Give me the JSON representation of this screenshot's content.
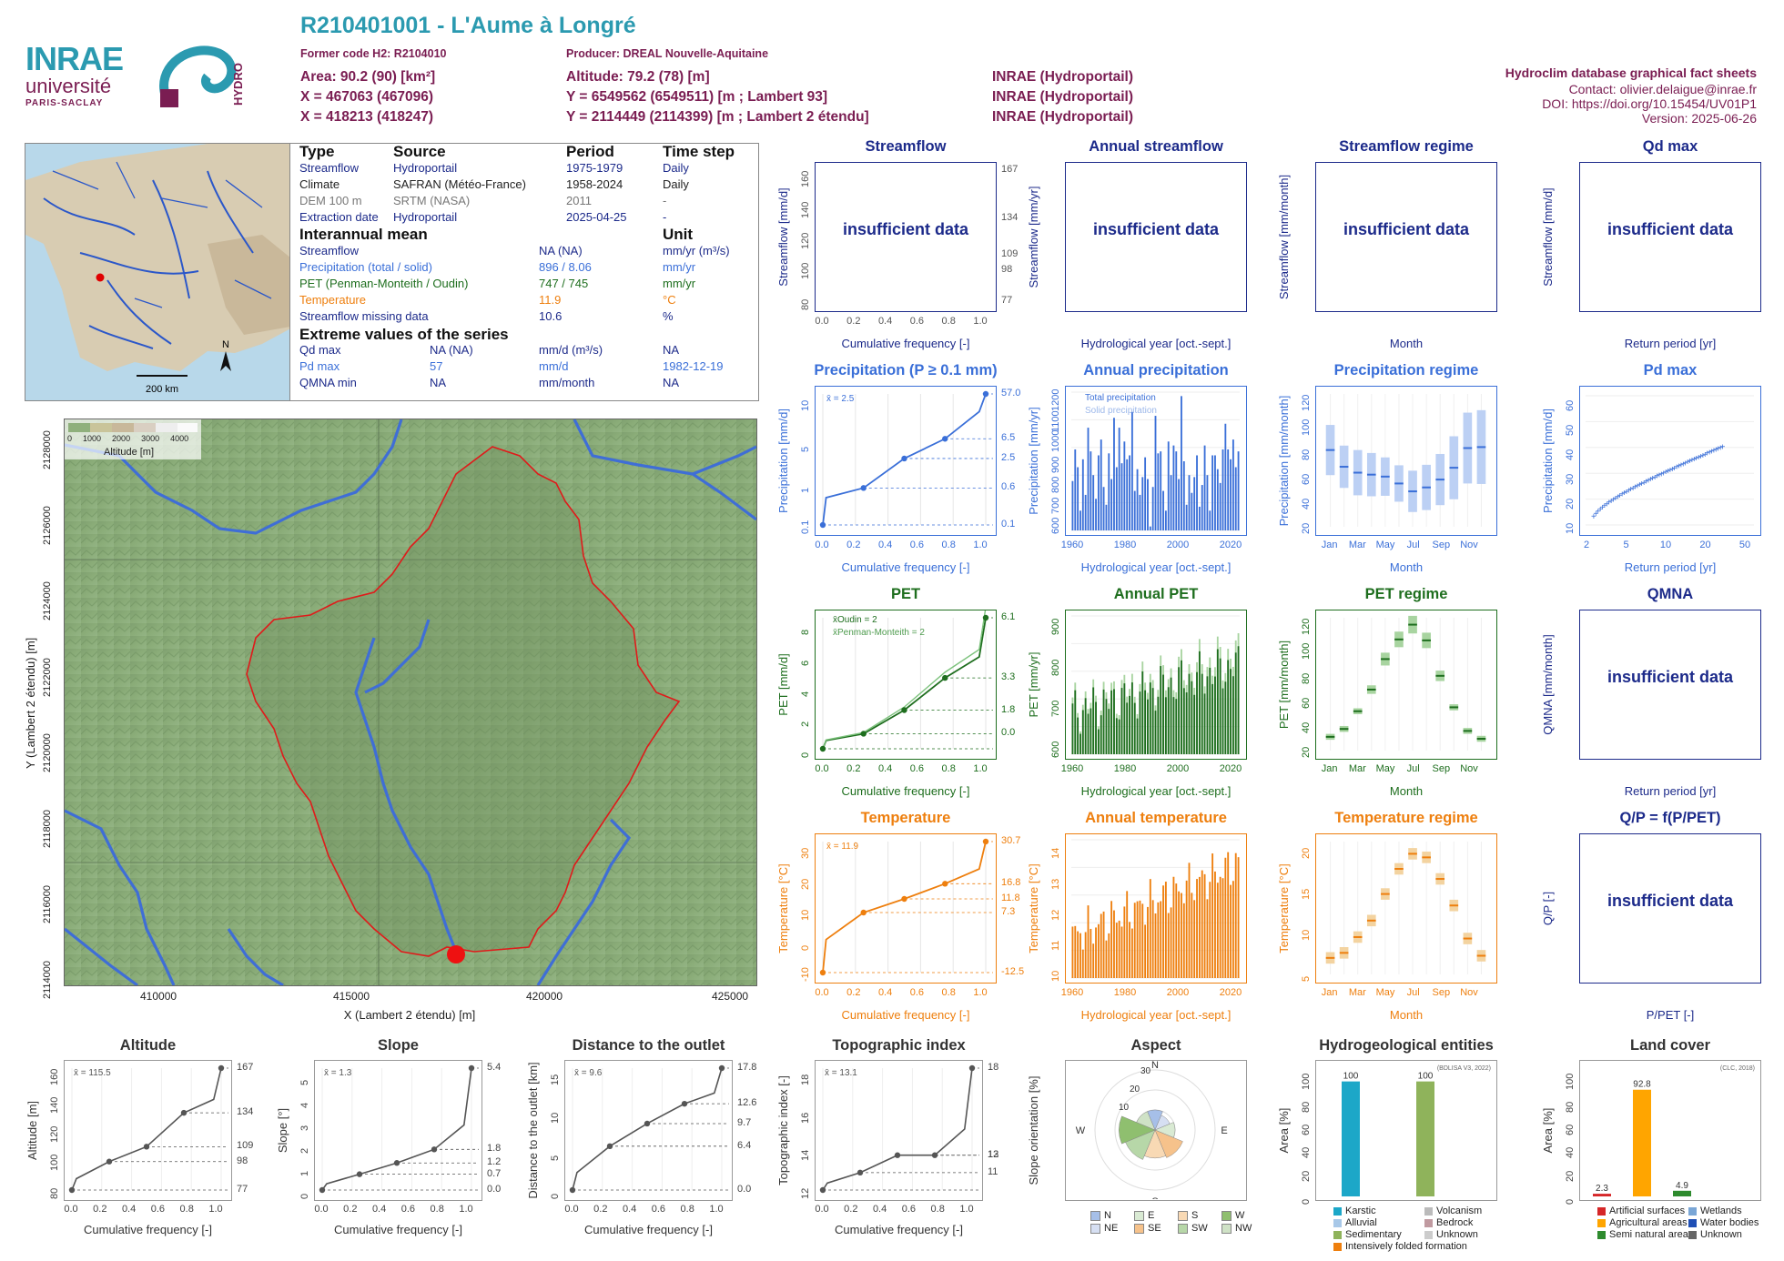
{
  "header": {
    "title": "R210401001 - L'Aume à Longré",
    "former_code": "Former code H2: R2104010",
    "producer": "Producer: DREAL Nouvelle-Aquitaine",
    "area": "Area: 90.2 (90) [km²]",
    "altitude": "Altitude: 79.2 (78) [m]",
    "x_coord": "X = 467063 (467096)",
    "y_coord_l93": "Y = 6549562 (6549511) [m ; Lambert 93]",
    "x_coord2": "X = 418213 (418247)",
    "y_coord_l2": "Y = 2114449 (2114399) [m ; Lambert 2 étendu]",
    "src1": "INRAE (Hydroportail)",
    "src2": "INRAE (Hydroportail)",
    "src3": "INRAE (Hydroportail)",
    "right_title": "Hydroclim database graphical fact sheets",
    "contact": "Contact: olivier.delaigue@inrae.fr",
    "doi": "DOI: https://doi.org/10.15454/UV01P1",
    "version": "Version: 2025-06-26",
    "logo_inrae": "INRAE",
    "logo_univ": "université",
    "logo_ps": "PARIS-SACLAY",
    "logo_hydro": "HYDRO"
  },
  "minimap": {
    "scale": "200 km",
    "north": "N"
  },
  "info": {
    "h_type": "Type",
    "h_source": "Source",
    "h_period": "Period",
    "h_timestep": "Time step",
    "rows": [
      {
        "type": "Streamflow",
        "source": "Hydroportail",
        "period": "1975-1979",
        "step": "Daily",
        "color": "#1c2a8a"
      },
      {
        "type": "Climate",
        "source": "SAFRAN (Météo-France)",
        "period": "1958-2024",
        "step": "Daily",
        "color": "#222222"
      },
      {
        "type": "DEM 100 m",
        "source": "SRTM (NASA)",
        "period": "2011",
        "step": "-",
        "color": "#777777"
      },
      {
        "type": "Extraction date",
        "source": "Hydroportail",
        "period": "2025-04-25",
        "step": "-",
        "color": "#1c2a8a"
      }
    ],
    "h_interannual": "Interannual mean",
    "h_unit": "Unit",
    "means": [
      {
        "label": "Streamflow",
        "value": "NA (NA)",
        "unit": "mm/yr (m³/s)",
        "color": "#1c2a8a"
      },
      {
        "label": "Precipitation (total / solid)",
        "value": "896 / 8.06",
        "unit": "mm/yr",
        "color": "#3a6fd8"
      },
      {
        "label": "PET (Penman-Monteith / Oudin)",
        "value": "747 / 745",
        "unit": "mm/yr",
        "color": "#1e6e1e"
      },
      {
        "label": "Temperature",
        "value": "11.9",
        "unit": "°C",
        "color": "#ee7f0e"
      },
      {
        "label": "Streamflow missing data",
        "value": "10.6",
        "unit": "%",
        "color": "#1c2a8a"
      }
    ],
    "h_extreme": "Extreme values of the series",
    "extremes": [
      {
        "label": "Qd max",
        "value": "NA (NA)",
        "unit": "mm/d (m³/s)",
        "date": "NA",
        "color": "#1c2a8a"
      },
      {
        "label": "Pd max",
        "value": "57",
        "unit": "mm/d",
        "date": "1982-12-19",
        "color": "#3a6fd8"
      },
      {
        "label": "QMNA min",
        "value": "NA",
        "unit": "mm/month",
        "date": "NA",
        "color": "#1c2a8a"
      }
    ]
  },
  "map": {
    "ylabel": "Y (Lambert 2 étendu) [m]",
    "xlabel": "X (Lambert 2 étendu) [m]",
    "xticks": [
      "410000",
      "415000",
      "420000",
      "425000"
    ],
    "yticks": [
      "2128000",
      "2126000",
      "2124000",
      "2122000",
      "2120000",
      "2118000",
      "2116000",
      "2114000"
    ],
    "legend_title": "Altitude [m]",
    "legend_ticks": [
      "0",
      "1000",
      "2000",
      "3000",
      "4000"
    ]
  },
  "panels": {
    "streamflow": {
      "title": "Streamflow",
      "ylabel": "Streamflow [mm/d]",
      "xlabel": "Cumulative frequency [-]",
      "msg": "insufficient data"
    },
    "annual_streamflow": {
      "title": "Annual streamflow",
      "ylabel": "Streamflow [mm/yr]",
      "xlabel": "Hydrological year [oct.-sept.]",
      "msg": "insufficient data"
    },
    "streamflow_regime": {
      "title": "Streamflow regime",
      "ylabel": "Streamflow [mm/month]",
      "xlabel": "Month",
      "msg": "insufficient data"
    },
    "qd_max": {
      "title": "Qd  max",
      "ylabel": "Streamflow [mm/d]",
      "xlabel": "Return period [yr]",
      "msg": "insufficient data"
    },
    "precip": {
      "title": "Precipitation (P ≥ 0.1 mm)",
      "ylabel": "Precipitation [mm/d]",
      "xlabel": "Cumulative frequency [-]",
      "mean": "x̄ = 2.5"
    },
    "annual_precip": {
      "title": "Annual precipitation",
      "ylabel": "Precipitation [mm/yr]",
      "xlabel": "Hydrological year [oct.-sept.]",
      "leg1": "Total precipitation",
      "leg2": "Solid precipitation"
    },
    "precip_regime": {
      "title": "Precipitation regime",
      "ylabel": "Precipitation [mm/month]",
      "xlabel": "Month"
    },
    "pd_max": {
      "title": "Pd  max",
      "ylabel": "Precipitation [mm/d]",
      "xlabel": "Return period [yr]"
    },
    "pet": {
      "title": "PET",
      "ylabel": "PET [mm/d]",
      "xlabel": "Cumulative frequency [-]",
      "leg1": "x̄Oudin = 2",
      "leg2": "x̄Penman-Monteith = 2"
    },
    "annual_pet": {
      "title": "Annual PET",
      "ylabel": "PET [mm/yr]",
      "xlabel": "Hydrological year [oct.-sept.]"
    },
    "pet_regime": {
      "title": "PET regime",
      "ylabel": "PET [mm/month]",
      "xlabel": "Month"
    },
    "qmna": {
      "title": "QMNA",
      "ylabel": "QMNA [mm/month]",
      "xlabel": "Return period [yr]",
      "msg": "insufficient data"
    },
    "temp": {
      "title": "Temperature",
      "ylabel": "Temperature [°C]",
      "xlabel": "Cumulative frequency [-]",
      "mean": "x̄ = 11.9"
    },
    "annual_temp": {
      "title": "Annual temperature",
      "ylabel": "Temperature [°C]",
      "xlabel": "Hydrological year [oct.-sept.]"
    },
    "temp_regime": {
      "title": "Temperature regime",
      "ylabel": "Temperature [°C]",
      "xlabel": "Month"
    },
    "qp": {
      "title": "Q/P = f(P/PET)",
      "ylabel": "Q/P [-]",
      "xlabel": "P/PET [-]",
      "msg": "insufficient data"
    },
    "altitude": {
      "title": "Altitude",
      "ylabel": "Altitude [m]",
      "xlabel": "Cumulative frequency [-]",
      "mean": "x̄ = 115.5"
    },
    "slope": {
      "title": "Slope",
      "ylabel": "Slope [°]",
      "xlabel": "Cumulative frequency [-]",
      "mean": "x̄ = 1.3"
    },
    "distance": {
      "title": "Distance to the outlet",
      "ylabel": "Distance to the outlet [km]",
      "xlabel": "Cumulative frequency [-]",
      "mean": "x̄ = 9.6"
    },
    "topo": {
      "title": "Topographic index",
      "ylabel": "Topographic index [-]",
      "xlabel": "Cumulative frequency [-]",
      "mean": "x̄ = 13.1"
    },
    "aspect": {
      "title": "Aspect",
      "ylabel": "Slope orientation [%]"
    },
    "hydrogeo": {
      "title": "Hydrogeological entities",
      "ylabel": "Area [%]",
      "source": "(BDLISA V3, 2022)"
    },
    "landcover": {
      "title": "Land cover",
      "ylabel": "Area [%]",
      "source": "(CLC, 2018)"
    }
  },
  "months_short": [
    "Jan",
    "Mar",
    "May",
    "Jul",
    "Sep",
    "Nov"
  ],
  "chart_data": [
    {
      "type": "line",
      "name": "precipitation_cdf",
      "x": [
        0,
        0.25,
        0.5,
        0.75,
        1
      ],
      "y": [
        0.1,
        0.6,
        2.5,
        6.5,
        57.0
      ],
      "yscale": "log",
      "right_ticks": [
        "57.0",
        "6.5",
        "2.5",
        "0.6",
        "0.1"
      ],
      "yticks": [
        "0.1",
        "1",
        "5",
        "10"
      ],
      "xlim": [
        0,
        1
      ]
    },
    {
      "type": "bar",
      "name": "annual_precipitation",
      "x_start": 1959,
      "x_end": 2023,
      "values": [
        850,
        1010,
        920,
        700,
        960,
        780,
        1120,
        1000,
        880,
        760,
        980,
        1060,
        820,
        730,
        990,
        860,
        1170,
        920,
        1120,
        940,
        1050,
        960,
        980,
        1200,
        800,
        910,
        780,
        870,
        970,
        860,
        620,
        820,
        1180,
        990,
        1000,
        800,
        700,
        1050,
        880,
        1030,
        1000,
        860,
        1280,
        950,
        730,
        880,
        790,
        870,
        980,
        720,
        830,
        1030,
        880,
        700,
        980,
        980,
        910,
        840,
        1010,
        1140,
        1010,
        960,
        1060,
        920,
        1000
      ],
      "ylim": [
        600,
        1300
      ],
      "yticks": [
        "600",
        "700",
        "800",
        "900",
        "1000",
        "1100",
        "1200"
      ],
      "xticks": [
        "1960",
        "1980",
        "2000",
        "2020"
      ]
    },
    {
      "type": "box",
      "name": "precipitation_regime",
      "categories": [
        "Jan",
        "Feb",
        "Mar",
        "Apr",
        "May",
        "Jun",
        "Jul",
        "Aug",
        "Sep",
        "Oct",
        "Nov",
        "Dec"
      ],
      "median": [
        88,
        71,
        65,
        63,
        61,
        54,
        46,
        50,
        58,
        70,
        90,
        91
      ],
      "q1": [
        62,
        48,
        42,
        40,
        42,
        33,
        22,
        27,
        30,
        45,
        57,
        62
      ],
      "q3": [
        113,
        91,
        88,
        84,
        81,
        70,
        64,
        73,
        82,
        109,
        129,
        137
      ],
      "ylim": [
        10,
        145
      ],
      "yticks": [
        "20",
        "40",
        "60",
        "80",
        "100",
        "120"
      ]
    },
    {
      "type": "scatter",
      "name": "pd_max",
      "note": "Gumbel plot of annual maxima",
      "yticks": [
        "10",
        "20",
        "30",
        "40",
        "50",
        "60"
      ],
      "xticks": [
        "2",
        "5",
        "10",
        "20",
        "50"
      ]
    },
    {
      "type": "line",
      "name": "pet_cdf",
      "x": [
        0,
        0.25,
        0.5,
        0.75,
        1
      ],
      "y_oudin": [
        0.0,
        0.7,
        1.8,
        3.3,
        6.1
      ],
      "right_ticks": [
        "6.1",
        "3.3",
        "1.8",
        "0.0"
      ],
      "yticks": [
        "0",
        "2",
        "4",
        "6",
        "8"
      ],
      "xlim": [
        0,
        1
      ]
    },
    {
      "type": "bar",
      "name": "annual_pet",
      "x_start": 1959,
      "x_end": 2023,
      "ylim": [
        600,
        900
      ],
      "yticks": [
        "600",
        "700",
        "800",
        "900"
      ],
      "xticks": [
        "1960",
        "1980",
        "2000",
        "2020"
      ]
    },
    {
      "type": "box",
      "name": "pet_regime",
      "categories": [
        "Jan",
        "Feb",
        "Mar",
        "Apr",
        "May",
        "Jun",
        "Jul",
        "Aug",
        "Sep",
        "Oct",
        "Nov",
        "Dec"
      ],
      "median": [
        14,
        22,
        40,
        62,
        93,
        113,
        128,
        112,
        76,
        44,
        20,
        12
      ],
      "yticks": [
        "20",
        "40",
        "60",
        "80",
        "100",
        "120"
      ]
    },
    {
      "type": "line",
      "name": "temperature_cdf",
      "x": [
        0,
        0.25,
        0.5,
        0.75,
        1
      ],
      "y": [
        -12.5,
        7.3,
        11.8,
        16.8,
        30.7
      ],
      "right_ticks": [
        "30.7",
        "16.8",
        "11.8",
        "7.3",
        "-12.5"
      ],
      "yticks": [
        "-10",
        "0",
        "10",
        "20",
        "30"
      ],
      "xlim": [
        0,
        1
      ]
    },
    {
      "type": "bar",
      "name": "annual_temperature",
      "x_start": 1959,
      "x_end": 2023,
      "ylim": [
        9.5,
        13.8
      ],
      "yticks": [
        "10",
        "11",
        "12",
        "13",
        "14"
      ],
      "xticks": [
        "1960",
        "1980",
        "2000",
        "2020"
      ]
    },
    {
      "type": "box",
      "name": "temperature_regime",
      "categories": [
        "Jan",
        "Feb",
        "Mar",
        "Apr",
        "May",
        "Jun",
        "Jul",
        "Aug",
        "Sep",
        "Oct",
        "Nov",
        "Dec"
      ],
      "median": [
        5.3,
        6.0,
        8.2,
        10.5,
        14.2,
        17.7,
        19.8,
        19.3,
        16.3,
        12.6,
        8.0,
        5.6
      ],
      "yticks": [
        "5",
        "10",
        "15",
        "20"
      ]
    },
    {
      "type": "line",
      "name": "altitude_cdf",
      "x": [
        0,
        0.25,
        0.5,
        0.75,
        1
      ],
      "y": [
        77,
        98,
        109,
        134,
        167
      ],
      "right_ticks": [
        "167",
        "134",
        "109",
        "98",
        "77"
      ],
      "yticks": [
        "80",
        "100",
        "120",
        "140",
        "160"
      ]
    },
    {
      "type": "line",
      "name": "slope_cdf",
      "x": [
        0,
        0.25,
        0.5,
        0.75,
        1
      ],
      "y": [
        0.0,
        0.7,
        1.2,
        1.8,
        5.4
      ],
      "right_ticks": [
        "5.4",
        "1.8",
        "1.2",
        "0.7",
        "0.0"
      ],
      "yticks": [
        "0",
        "1",
        "2",
        "3",
        "4",
        "5"
      ]
    },
    {
      "type": "line",
      "name": "distance_cdf",
      "x": [
        0,
        0.25,
        0.5,
        0.75,
        1
      ],
      "y": [
        0.0,
        6.4,
        9.7,
        12.6,
        17.8
      ],
      "right_ticks": [
        "17.8",
        "12.6",
        "9.7",
        "6.4",
        "0.0"
      ],
      "yticks": [
        "0",
        "5",
        "10",
        "15"
      ]
    },
    {
      "type": "line",
      "name": "topographic_index_cdf",
      "x": [
        0,
        0.25,
        0.5,
        0.75,
        1
      ],
      "y": [
        11,
        12,
        13,
        13,
        18
      ],
      "right_ticks": [
        "18",
        "13",
        "12",
        "11"
      ],
      "yticks": [
        "12",
        "14",
        "16",
        "18"
      ]
    },
    {
      "type": "bar",
      "name": "hydrogeological_entities",
      "categories": [
        "Karstic",
        "Sedimentary"
      ],
      "values": [
        100,
        100
      ],
      "colors": [
        "#1ca7c8",
        "#8fb35b"
      ],
      "ylim": [
        0,
        110
      ],
      "yticks": [
        "0",
        "20",
        "40",
        "60",
        "80",
        "100"
      ],
      "legend": [
        {
          "label": "Karstic",
          "color": "#1ca7c8"
        },
        {
          "label": "Volcanism",
          "color": "#bbbbbb"
        },
        {
          "label": "Alluvial",
          "color": "#a8c8e8"
        },
        {
          "label": "Bedrock",
          "color": "#c09aa0"
        },
        {
          "label": "Sedimentary",
          "color": "#8fb35b"
        },
        {
          "label": "Unknown",
          "color": "#cccccc"
        },
        {
          "label": "Intensively folded formation",
          "color": "#ee7f0e"
        }
      ]
    },
    {
      "type": "bar",
      "name": "land_cover",
      "categories": [
        "Artificial surfaces",
        "Agricultural areas",
        "Semi natural areas"
      ],
      "values": [
        2.3,
        92.8,
        4.9
      ],
      "labels": [
        "2.3",
        "92.8",
        "4.9"
      ],
      "colors": [
        "#d62728",
        "#ffa500",
        "#2e8b2e"
      ],
      "ylim": [
        0,
        110
      ],
      "yticks": [
        "0",
        "20",
        "40",
        "60",
        "80",
        "100"
      ],
      "legend": [
        {
          "label": "Artificial surfaces",
          "color": "#d62728"
        },
        {
          "label": "Wetlands",
          "color": "#7aa6d6"
        },
        {
          "label": "Agricultural areas",
          "color": "#ffa500"
        },
        {
          "label": "Water bodies",
          "color": "#1f4fb5"
        },
        {
          "label": "Semi natural areas",
          "color": "#2e8b2e"
        },
        {
          "label": "Unknown",
          "color": "#666666"
        }
      ]
    },
    {
      "type": "pie",
      "name": "aspect",
      "directions": [
        "N",
        "NE",
        "E",
        "SE",
        "S",
        "SW",
        "W",
        "NW"
      ],
      "values": [
        10,
        8,
        10,
        15,
        14,
        16,
        18,
        10
      ],
      "colors": [
        "#a6bfe8",
        "#d6dff2",
        "#d9ead3",
        "#f6c28b",
        "#f8d9b4",
        "#b7d7a8",
        "#8fbf6f",
        "#cfe2c6"
      ],
      "radial_ticks": [
        "10",
        "20",
        "30"
      ],
      "legend": [
        "N",
        "E",
        "S",
        "W",
        "NE",
        "SE",
        "SW",
        "NW"
      ]
    }
  ]
}
